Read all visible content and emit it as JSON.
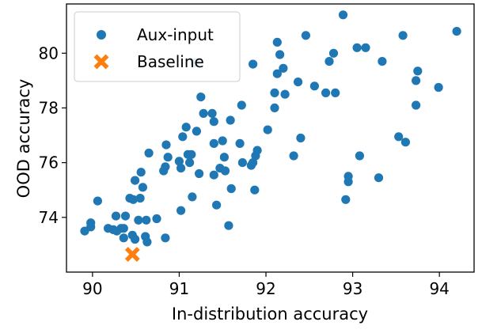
{
  "chart_data": {
    "type": "scatter",
    "xlabel": "In-distribution accuracy",
    "ylabel": "OOD accuracy",
    "xlim": [
      89.7,
      94.4
    ],
    "ylim": [
      72.0,
      81.8
    ],
    "xticks": [
      90,
      91,
      92,
      93,
      94
    ],
    "yticks": [
      74,
      76,
      78,
      80
    ],
    "grid": false,
    "legend_position": "top-left",
    "colors": {
      "aux": "#1f77b4",
      "baseline": "#ff7f0e"
    },
    "series": [
      {
        "name": "Aux-input",
        "marker": "circle",
        "points": [
          [
            89.91,
            73.5
          ],
          [
            89.98,
            73.8
          ],
          [
            89.98,
            73.65
          ],
          [
            90.06,
            74.6
          ],
          [
            90.18,
            73.6
          ],
          [
            90.24,
            73.55
          ],
          [
            90.27,
            74.05
          ],
          [
            90.28,
            73.5
          ],
          [
            90.33,
            73.6
          ],
          [
            90.36,
            73.6
          ],
          [
            90.36,
            73.25
          ],
          [
            90.38,
            74.05
          ],
          [
            90.43,
            74.7
          ],
          [
            90.46,
            73.35
          ],
          [
            90.47,
            74.65
          ],
          [
            90.49,
            75.35
          ],
          [
            90.49,
            73.2
          ],
          [
            90.53,
            73.9
          ],
          [
            90.55,
            74.7
          ],
          [
            90.56,
            75.65
          ],
          [
            90.58,
            75.1
          ],
          [
            90.61,
            73.3
          ],
          [
            90.62,
            73.9
          ],
          [
            90.63,
            73.1
          ],
          [
            90.65,
            76.35
          ],
          [
            90.74,
            73.95
          ],
          [
            90.82,
            75.7
          ],
          [
            90.84,
            75.85
          ],
          [
            90.84,
            73.25
          ],
          [
            90.85,
            76.65
          ],
          [
            90.87,
            76.2
          ],
          [
            91.0,
            76.05
          ],
          [
            91.02,
            74.25
          ],
          [
            91.02,
            75.8
          ],
          [
            91.04,
            76.95
          ],
          [
            91.08,
            77.3
          ],
          [
            91.1,
            76.3
          ],
          [
            91.12,
            76.0
          ],
          [
            91.14,
            76.3
          ],
          [
            91.15,
            74.75
          ],
          [
            91.18,
            79.65
          ],
          [
            91.2,
            77.15
          ],
          [
            91.23,
            75.6
          ],
          [
            91.25,
            78.4
          ],
          [
            91.28,
            77.8
          ],
          [
            91.38,
            77.8
          ],
          [
            91.4,
            77.5
          ],
          [
            91.4,
            76.7
          ],
          [
            91.4,
            75.55
          ],
          [
            91.43,
            74.45
          ],
          [
            91.47,
            75.8
          ],
          [
            91.5,
            76.8
          ],
          [
            91.52,
            76.2
          ],
          [
            91.53,
            75.7
          ],
          [
            91.57,
            73.7
          ],
          [
            91.59,
            77.55
          ],
          [
            91.6,
            75.05
          ],
          [
            91.7,
            76.7
          ],
          [
            91.72,
            78.1
          ],
          [
            91.73,
            76.0
          ],
          [
            91.83,
            75.9
          ],
          [
            91.85,
            79.6
          ],
          [
            91.85,
            76.0
          ],
          [
            91.87,
            75.0
          ],
          [
            91.88,
            76.25
          ],
          [
            91.9,
            76.45
          ],
          [
            92.02,
            77.2
          ],
          [
            92.1,
            78.55
          ],
          [
            92.1,
            78.0
          ],
          [
            92.13,
            79.25
          ],
          [
            92.13,
            80.4
          ],
          [
            92.16,
            79.95
          ],
          [
            92.2,
            79.45
          ],
          [
            92.22,
            78.5
          ],
          [
            92.32,
            76.25
          ],
          [
            92.37,
            78.95
          ],
          [
            92.4,
            76.9
          ],
          [
            92.46,
            80.65
          ],
          [
            92.56,
            78.8
          ],
          [
            92.69,
            78.55
          ],
          [
            92.73,
            79.7
          ],
          [
            92.78,
            80.0
          ],
          [
            92.8,
            78.55
          ],
          [
            92.89,
            81.4
          ],
          [
            92.92,
            74.65
          ],
          [
            92.95,
            75.5
          ],
          [
            92.95,
            75.3
          ],
          [
            93.05,
            80.2
          ],
          [
            93.08,
            76.25
          ],
          [
            93.15,
            80.2
          ],
          [
            93.3,
            75.45
          ],
          [
            93.34,
            79.7
          ],
          [
            93.53,
            76.95
          ],
          [
            93.58,
            80.65
          ],
          [
            93.61,
            76.75
          ],
          [
            93.73,
            79.0
          ],
          [
            93.73,
            78.1
          ],
          [
            93.75,
            79.35
          ],
          [
            93.99,
            78.75
          ],
          [
            94.2,
            80.8
          ]
        ]
      },
      {
        "name": "Baseline",
        "marker": "x",
        "points": [
          [
            90.46,
            72.65
          ]
        ]
      }
    ]
  }
}
